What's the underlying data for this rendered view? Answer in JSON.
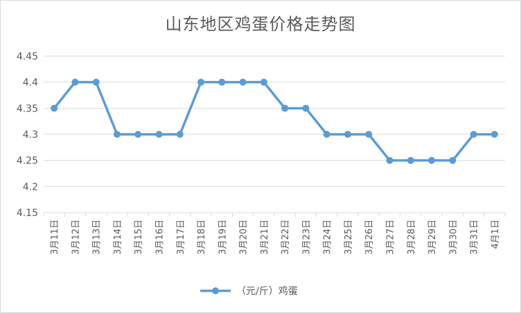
{
  "chart_data": {
    "type": "line",
    "title": "山东地区鸡蛋价格走势图",
    "categories": [
      "3月11日",
      "3月12日",
      "3月13日",
      "3月14日",
      "3月15日",
      "3月16日",
      "3月17日",
      "3月18日",
      "3月19日",
      "3月20日",
      "3月21日",
      "3月22日",
      "3月23日",
      "3月24日",
      "3月25日",
      "3月26日",
      "3月27日",
      "3月28日",
      "3月29日",
      "3月30日",
      "3月31日",
      "4月1日"
    ],
    "series": [
      {
        "name": "（元/斤）鸡蛋",
        "values": [
          4.35,
          4.4,
          4.4,
          4.3,
          4.3,
          4.3,
          4.3,
          4.4,
          4.4,
          4.4,
          4.4,
          4.35,
          4.35,
          4.3,
          4.3,
          4.3,
          4.25,
          4.25,
          4.25,
          4.25,
          4.3,
          4.3
        ]
      }
    ],
    "yticks": [
      "4.15",
      "4.2",
      "4.25",
      "4.3",
      "4.35",
      "4.4",
      "4.45"
    ],
    "ylim": [
      4.15,
      4.45
    ],
    "grid": true,
    "legend_position": "bottom",
    "colors": {
      "line": "#5b9bd5",
      "grid": "#d9d9d9",
      "text": "#595959"
    }
  }
}
